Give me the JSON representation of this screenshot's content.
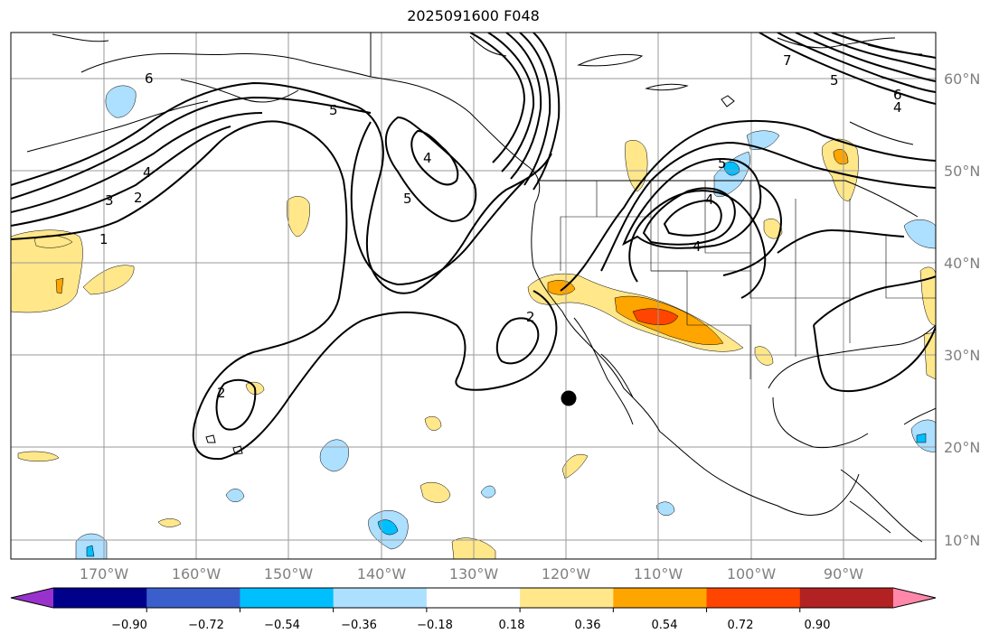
{
  "title": "2025091600 F048",
  "lat_labels": [
    "60°N",
    "50°N",
    "40°N",
    "30°N",
    "20°N",
    "10°N"
  ],
  "lon_labels": [
    "170°W",
    "160°W",
    "150°W",
    "140°W",
    "130°W",
    "120°W",
    "110°W",
    "100°W",
    "90°W"
  ],
  "colorbar": {
    "colors": [
      "#9932CC",
      "#00008B",
      "#3A5FCD",
      "#00BFFF",
      "#ADDFFF",
      "#FFFFFF",
      "#FFE78A",
      "#FFA500",
      "#FF4500",
      "#B22222",
      "#FF88AA"
    ],
    "tick_labels": [
      "−0.90",
      "−0.72",
      "−0.54",
      "−0.36",
      "−0.18",
      "0.18",
      "0.36",
      "0.54",
      "0.72",
      "0.90"
    ]
  },
  "contour_labels": [
    "6",
    "5",
    "4",
    "3",
    "2",
    "1",
    "4",
    "5",
    "2",
    "2",
    "5",
    "4",
    "4",
    "7",
    "5",
    "6",
    "4"
  ],
  "marker": {
    "name": "black-dot",
    "lon": "120°W",
    "lat": "25°N"
  }
}
